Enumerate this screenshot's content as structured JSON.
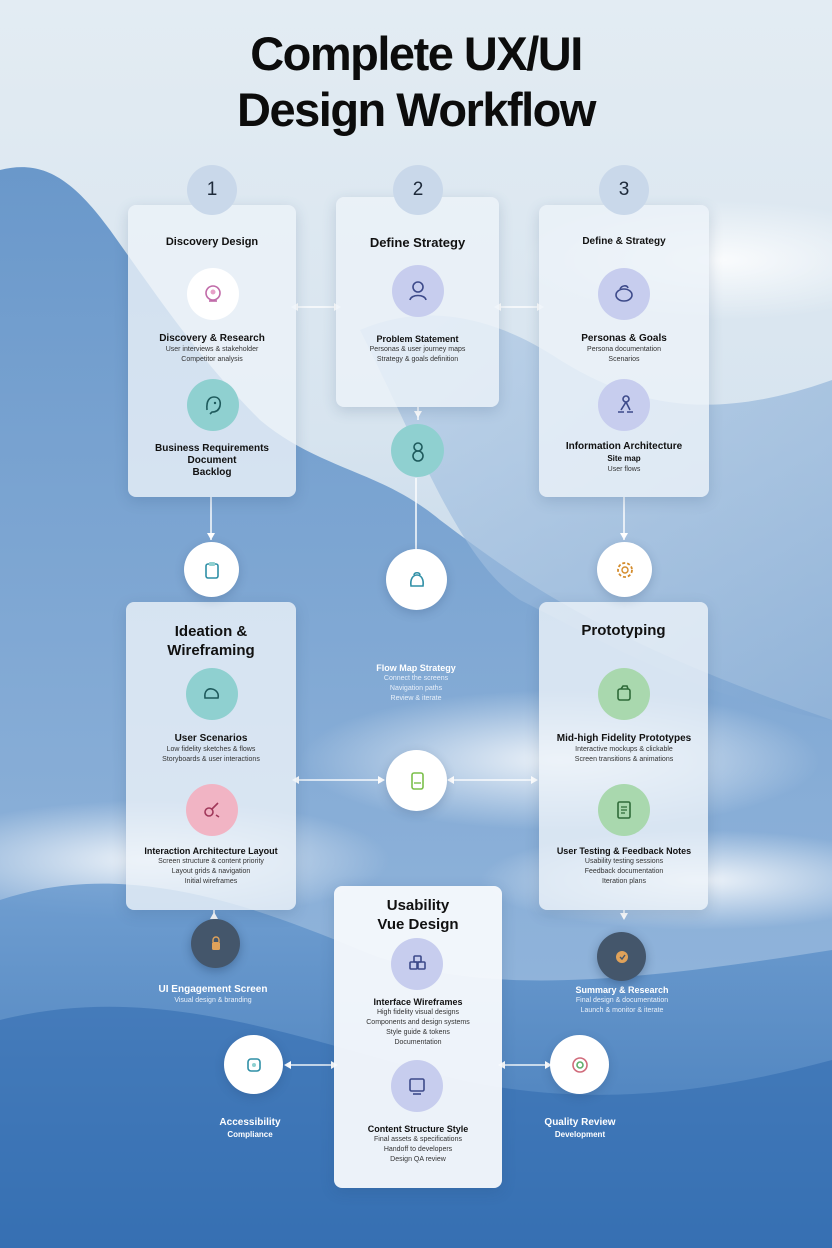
{
  "title": {
    "line1": "Complete UX/UI",
    "line2": "Design Workflow"
  },
  "steps": [
    {
      "number": "1",
      "title": "Discovery Design",
      "items": [
        {
          "heading": "Discovery & Research",
          "lines": [
            "User interviews & stakeholder",
            "Competitor analysis"
          ]
        },
        {
          "heading": "Business Requirements",
          "lines": [
            "Document",
            "Backlog"
          ]
        }
      ]
    },
    {
      "number": "2",
      "title": "Define Strategy",
      "items": [
        {
          "heading": "Problem Statement",
          "lines": [
            "Personas & user journey maps",
            "Strategy & goals definition"
          ]
        }
      ]
    },
    {
      "number": "3",
      "title": "Define & Strategy",
      "items": [
        {
          "heading": "Personas & Goals",
          "lines": [
            "Persona documentation",
            "Scenarios"
          ]
        },
        {
          "heading": "Information Architecture",
          "lines": [
            "Site map",
            "User flows"
          ]
        }
      ]
    }
  ],
  "ideation": {
    "title_line1": "Ideation &",
    "title_line2": "Wireframing",
    "items": [
      {
        "heading": "User Scenarios",
        "lines": [
          "Low fidelity sketches & flows",
          "Storyboards & user interactions"
        ]
      },
      {
        "heading": "Interaction Architecture Layout",
        "lines": [
          "Screen structure & content priority",
          "Layout grids & navigation",
          "Initial wireframes"
        ]
      }
    ]
  },
  "center_note": {
    "heading": "Flow Map Strategy",
    "lines": [
      "Connect the screens",
      "Navigation paths",
      "Review & iterate"
    ]
  },
  "prototyping": {
    "title": "Prototyping",
    "items": [
      {
        "heading": "Mid-high Fidelity Prototypes",
        "lines": [
          "Interactive mockups & clickable",
          "Screen transitions & animations"
        ]
      },
      {
        "heading": "User Testing & Feedback Notes",
        "lines": [
          "Usability testing sessions",
          "Feedback documentation",
          "Iteration plans"
        ]
      }
    ]
  },
  "usability": {
    "title_line1": "Usability",
    "title_line2": "Vue Design",
    "items": [
      {
        "heading": "Interface Wireframes",
        "lines": [
          "High fidelity visual designs",
          "Components and design systems",
          "Style guide & tokens",
          "Documentation"
        ]
      },
      {
        "heading": "Content Structure Style",
        "lines": [
          "Final assets & specifications",
          "Handoff to developers",
          "Design QA review"
        ]
      }
    ]
  },
  "side_left": {
    "heading": "UI Engagement Screen",
    "lines": [
      "Visual design & branding"
    ]
  },
  "side_right": {
    "heading": "Summary & Research",
    "lines": [
      "Final design & documentation",
      "Launch & monitor & iterate"
    ]
  },
  "bottom_left": {
    "heading": "Accessibility",
    "lines": [
      "Compliance"
    ]
  },
  "bottom_right": {
    "heading": "Quality Review",
    "lines": [
      "Development"
    ]
  },
  "colors": {
    "badge": "#c9d8ea",
    "lavender": "#c7cdee",
    "teal": "#8fd0d0",
    "pink": "#f1b4c4",
    "green": "#a9d8ae",
    "node_dark": "#44566b",
    "sky_top": "#e2ecf4",
    "mountain": "#6f9fcf"
  }
}
